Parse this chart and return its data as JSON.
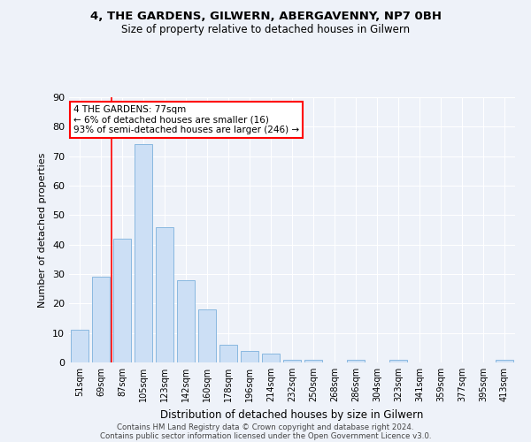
{
  "title1": "4, THE GARDENS, GILWERN, ABERGAVENNY, NP7 0BH",
  "title2": "Size of property relative to detached houses in Gilwern",
  "xlabel": "Distribution of detached houses by size in Gilwern",
  "ylabel": "Number of detached properties",
  "bar_color": "#ccdff5",
  "bar_edge_color": "#89b8e0",
  "categories": [
    "51sqm",
    "69sqm",
    "87sqm",
    "105sqm",
    "123sqm",
    "142sqm",
    "160sqm",
    "178sqm",
    "196sqm",
    "214sqm",
    "232sqm",
    "250sqm",
    "268sqm",
    "286sqm",
    "304sqm",
    "323sqm",
    "341sqm",
    "359sqm",
    "377sqm",
    "395sqm",
    "413sqm"
  ],
  "values": [
    11,
    29,
    42,
    74,
    46,
    28,
    18,
    6,
    4,
    3,
    1,
    1,
    0,
    1,
    0,
    1,
    0,
    0,
    0,
    0,
    1
  ],
  "ylim": [
    0,
    90
  ],
  "yticks": [
    0,
    10,
    20,
    30,
    40,
    50,
    60,
    70,
    80,
    90
  ],
  "red_line_x": 1.5,
  "annotation_line1": "4 THE GARDENS: 77sqm",
  "annotation_line2": "← 6% of detached houses are smaller (16)",
  "annotation_line3": "93% of semi-detached houses are larger (246) →",
  "footer1": "Contains HM Land Registry data © Crown copyright and database right 2024.",
  "footer2": "Contains public sector information licensed under the Open Government Licence v3.0.",
  "background_color": "#eef2f9",
  "grid_color": "#ffffff",
  "figsize": [
    6.0,
    5.0
  ],
  "dpi": 100
}
